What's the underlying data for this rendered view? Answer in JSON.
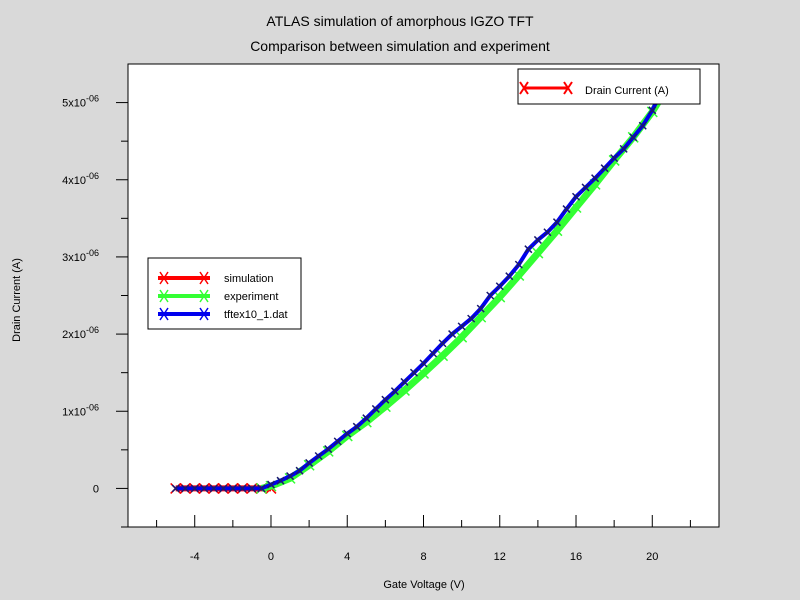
{
  "chart_data": {
    "type": "line",
    "title": "ATLAS simulation of amorphous IGZO TFT",
    "subtitle": "Comparison between simulation and experiment",
    "xlabel": "Gate Voltage (V)",
    "ylabel": "Drain Current (A)",
    "xlim": [
      -7.5,
      23.5
    ],
    "ylim": [
      -5e-07,
      5.5e-06
    ],
    "xticks": [
      -4,
      0,
      4,
      8,
      12,
      16,
      20
    ],
    "xtick_labels": [
      "-4",
      "0",
      "4",
      "8",
      "12",
      "16",
      "20"
    ],
    "yticks": [
      0,
      1e-06,
      2e-06,
      3e-06,
      4e-06,
      5e-06
    ],
    "ytick_labels": [
      {
        "base": "0",
        "exp": ""
      },
      {
        "base": "1x10",
        "exp": "-06"
      },
      {
        "base": "2x10",
        "exp": "-06"
      },
      {
        "base": "3x10",
        "exp": "-06"
      },
      {
        "base": "4x10",
        "exp": "-06"
      },
      {
        "base": "5x10",
        "exp": "-06"
      }
    ],
    "grid": false,
    "legend_series": {
      "placement": "left-middle",
      "entries": [
        "simulation",
        "experiment",
        "tftex10_1.dat"
      ]
    },
    "legend_quantity": {
      "placement": "top-right",
      "entries": [
        "Drain Current (A)"
      ]
    },
    "series": [
      {
        "name": "simulation",
        "color": "#ff0000",
        "marker": "x",
        "x": [
          -5,
          -4.5,
          -4,
          -3.5,
          -3,
          -2.5,
          -2,
          -1.5,
          -1,
          -0.5,
          0
        ],
        "y": [
          0,
          0,
          0,
          0,
          0,
          0,
          0,
          0,
          0,
          0,
          0
        ]
      },
      {
        "name": "experiment",
        "color": "#33ff33",
        "marker": "x",
        "x": [
          -0.5,
          0,
          1,
          2,
          3,
          4,
          5,
          6,
          7,
          8,
          9,
          10,
          11,
          12,
          13,
          14,
          15,
          16,
          17,
          18,
          19,
          20,
          20.5
        ],
        "y": [
          0,
          3e-08,
          1.3e-07,
          3e-07,
          4.8e-07,
          6.8e-07,
          8.6e-07,
          1.06e-06,
          1.27e-06,
          1.49e-06,
          1.72e-06,
          1.96e-06,
          2.22e-06,
          2.48e-06,
          2.76e-06,
          3.05e-06,
          3.34e-06,
          3.64e-06,
          3.94e-06,
          4.25e-06,
          4.55e-06,
          4.88e-06,
          5.08e-06
        ]
      },
      {
        "name": "tftex10_1.dat",
        "color": "#0000ee",
        "marker": "x",
        "x": [
          -5,
          -4.5,
          -4,
          -3.5,
          -3,
          -2.5,
          -2,
          -1.5,
          -1,
          -0.5,
          0,
          0.5,
          1,
          1.5,
          2,
          2.5,
          3,
          3.5,
          4,
          4.5,
          5,
          5.5,
          6,
          6.5,
          7,
          7.5,
          8,
          8.5,
          9,
          9.5,
          10,
          10.5,
          11,
          11.5,
          12,
          12.5,
          13,
          13.5,
          14,
          14.5,
          15,
          15.5,
          16,
          16.5,
          17,
          17.5,
          18,
          18.5,
          19,
          19.5,
          20,
          20.3
        ],
        "y": [
          0,
          0,
          0,
          0,
          0,
          0,
          0,
          0,
          0,
          0,
          5e-08,
          1e-07,
          1.6e-07,
          2.3e-07,
          3.3e-07,
          4.2e-07,
          5.1e-07,
          6.1e-07,
          7.1e-07,
          8e-07,
          9.1e-07,
          1.03e-06,
          1.15e-06,
          1.26e-06,
          1.38e-06,
          1.5e-06,
          1.62e-06,
          1.75e-06,
          1.88e-06,
          2e-06,
          2.1e-06,
          2.2e-06,
          2.33e-06,
          2.5e-06,
          2.62e-06,
          2.75e-06,
          2.9e-06,
          3.1e-06,
          3.22e-06,
          3.32e-06,
          3.45e-06,
          3.62e-06,
          3.78e-06,
          3.9e-06,
          4.02e-06,
          4.15e-06,
          4.28e-06,
          4.4e-06,
          4.55e-06,
          4.7e-06,
          4.9e-06,
          5.05e-06
        ]
      }
    ]
  }
}
